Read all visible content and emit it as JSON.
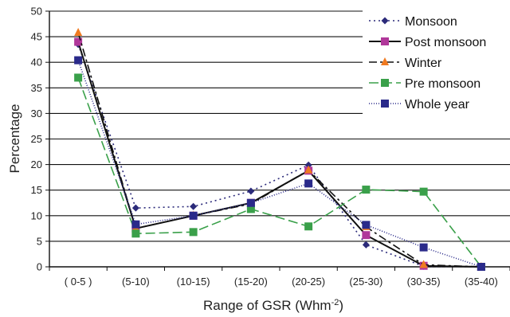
{
  "chart_data": {
    "type": "line",
    "categories": [
      "( 0-5 )",
      "(5-10)",
      "(10-15)",
      "(15-20)",
      "(20-25)",
      "(25-30)",
      "(30-35)",
      "(35-40)"
    ],
    "xlabel": "Range of GSR (Whm",
    "xlabel_sup": "-2",
    "xlabel_end": ")",
    "ylabel": "Percentage",
    "ylim": [
      0,
      50
    ],
    "yticks": [
      0,
      5,
      10,
      15,
      20,
      25,
      30,
      35,
      40,
      45,
      50
    ],
    "grid": "horizontal",
    "legend_position": "top-right",
    "series": [
      {
        "name": "Monsoon",
        "values": [
          43.5,
          11.5,
          11.8,
          14.8,
          19.9,
          4.3,
          0.1,
          0
        ],
        "color": "#2b2a7a",
        "marker": "diamond",
        "dash": "2,4"
      },
      {
        "name": "Post monsoon",
        "values": [
          44,
          7.5,
          10,
          12.5,
          18.8,
          6.2,
          0.2,
          0
        ],
        "color": "#b0379a",
        "marker": "square",
        "dash": ""
      },
      {
        "name": "Winter",
        "values": [
          45.8,
          7.5,
          10,
          12.3,
          18.9,
          7.8,
          0.4,
          0
        ],
        "color": "#f07a20",
        "marker": "triangle",
        "dash": "10,4,3,4"
      },
      {
        "name": "Pre monsoon",
        "values": [
          37,
          6.5,
          6.8,
          11.3,
          7.9,
          15.1,
          14.7,
          0
        ],
        "color": "#3aa04a",
        "marker": "square",
        "dash": "12,5"
      },
      {
        "name": "Whole year",
        "values": [
          40.4,
          8.3,
          10,
          12.5,
          16.3,
          8.2,
          3.8,
          0
        ],
        "color": "#2a2a8a",
        "marker": "square",
        "dash": "1,2"
      }
    ]
  }
}
